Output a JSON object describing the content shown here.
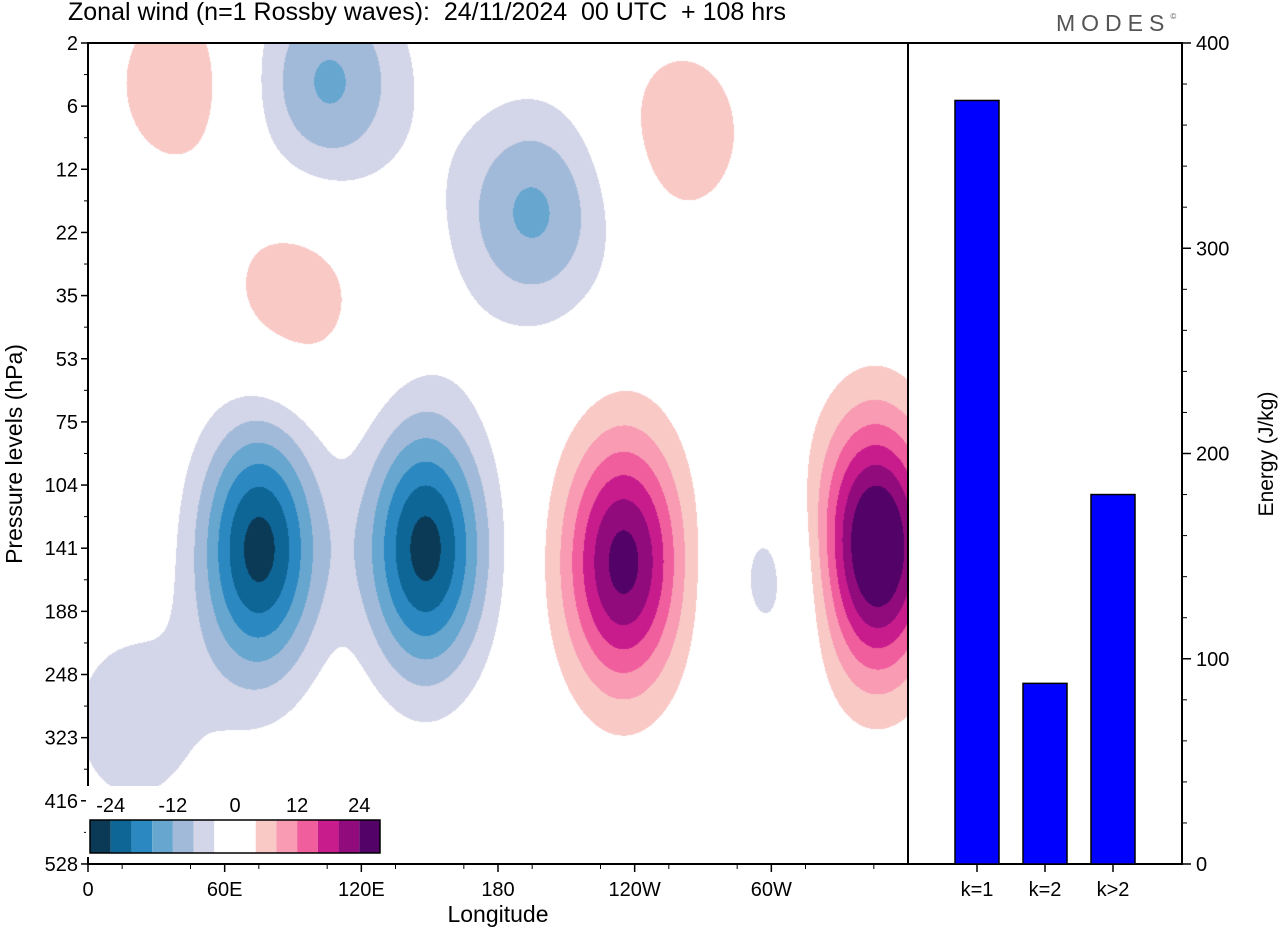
{
  "title": "Zonal wind (n=1 Rossby waves):  24/11/2024  00 UTC  + 108 hrs",
  "brand": "MODES",
  "brand_mark": "©",
  "colors": {
    "neg": [
      "#0b3a57",
      "#0e6697",
      "#2b88c0",
      "#66a6cf",
      "#a2bad9",
      "#d3d5e8"
    ],
    "zero": "#ffffff",
    "pos": [
      "#f9c9c6",
      "#f89bb3",
      "#f05e9d",
      "#c81c8d",
      "#910b7d",
      "#530368"
    ],
    "bar": "#0000ff"
  },
  "chart_data": [
    {
      "type": "heatmap",
      "title": "Zonal wind (n=1 Rossby waves):  24/11/2024  00 UTC  + 108 hrs",
      "xlabel": "Longitude",
      "ylabel": "Pressure levels (hPa)",
      "x_ticks": [
        "0",
        "60E",
        "120E",
        "180",
        "120W",
        "60W"
      ],
      "y_ticks": [
        "2",
        "6",
        "12",
        "22",
        "35",
        "53",
        "75",
        "104",
        "141",
        "188",
        "248",
        "323",
        "416",
        "528"
      ],
      "colorbar_ticks": [
        "-24",
        "-12",
        "0",
        "12",
        "24"
      ],
      "contour_levels": [
        -24,
        -20,
        -16,
        -12,
        -8,
        -4,
        4,
        8,
        12,
        16,
        20,
        24
      ],
      "features": [
        {
          "lon": 40,
          "level_hpa": 4,
          "value": 4
        },
        {
          "lon": 105,
          "level_hpa": 4,
          "value": -8
        },
        {
          "lon": 195,
          "level_hpa": 18,
          "value": -8
        },
        {
          "lon": 90,
          "level_hpa": 35,
          "value": 4
        },
        {
          "lon": 260,
          "level_hpa": 8,
          "value": 4
        },
        {
          "lon": 75,
          "level_hpa": 141,
          "value": -16
        },
        {
          "lon": 148,
          "level_hpa": 141,
          "value": -16
        },
        {
          "lon": 235,
          "level_hpa": 150,
          "value": 16
        },
        {
          "lon": 345,
          "level_hpa": 141,
          "value": 20
        },
        {
          "lon": 310,
          "level_hpa": 160,
          "value": -4
        },
        {
          "lon": 20,
          "level_hpa": 300,
          "value": -4
        }
      ]
    },
    {
      "type": "bar",
      "categories": [
        "k=1",
        "k=2",
        "k>2"
      ],
      "values": [
        372,
        88,
        180
      ],
      "ylabel": "Energy (J/kg)",
      "ylim": [
        0,
        400
      ],
      "y_ticks": [
        "0",
        "100",
        "200",
        "300",
        "400"
      ]
    }
  ]
}
